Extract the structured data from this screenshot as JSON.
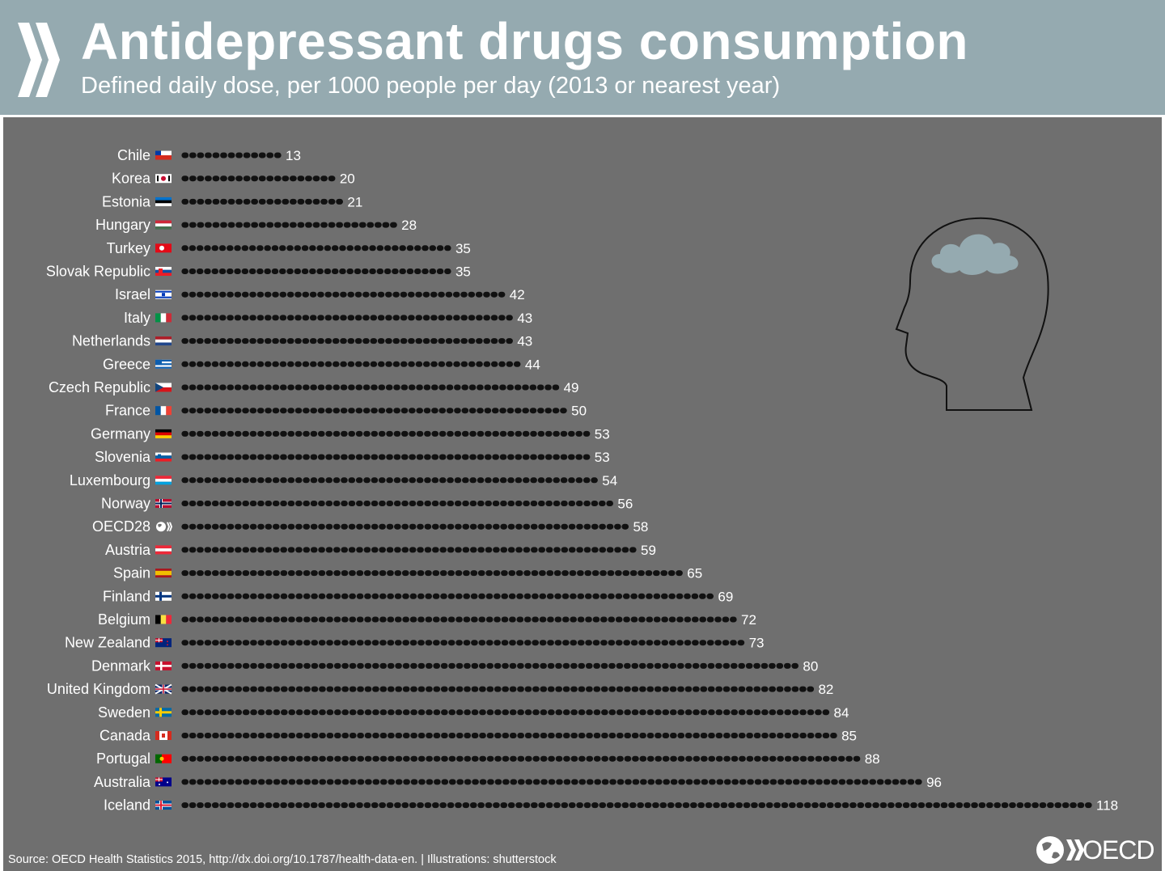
{
  "header": {
    "title": "Antidepressant drugs consumption",
    "subtitle": "Defined daily dose, per 1000 people per day (2013 or nearest year)"
  },
  "footer": {
    "source": "Source: OECD Health Statistics 2015, http://dx.doi.org/10.1787/health-data-en. | Illustrations: shutterstock",
    "logo_text": "OECD"
  },
  "colors": {
    "header_bg": "#95aab0",
    "panel_bg": "#6f6f6f",
    "pill": "#111111",
    "text": "#ffffff",
    "cloud": "#95aab0"
  },
  "chart_data": {
    "type": "bar",
    "title": "Antidepressant drugs consumption",
    "subtitle": "Defined daily dose, per 1000 people per day (2013 or nearest year)",
    "xlabel": "",
    "ylabel": "",
    "grid": false,
    "legend": "none",
    "bar_style": "rows of capsule pills",
    "categories": [
      "Chile",
      "Korea",
      "Estonia",
      "Hungary",
      "Turkey",
      "Slovak Republic",
      "Israel",
      "Italy",
      "Netherlands",
      "Greece",
      "Czech Republic",
      "France",
      "Germany",
      "Slovenia",
      "Luxembourg",
      "Norway",
      "OECD28",
      "Austria",
      "Spain",
      "Finland",
      "Belgium",
      "New Zealand",
      "Denmark",
      "United Kingdom",
      "Sweden",
      "Canada",
      "Portugal",
      "Australia",
      "Iceland"
    ],
    "flags": [
      "flag-chile",
      "flag-korea",
      "flag-estonia",
      "flag-hungary",
      "flag-turkey",
      "flag-slovak-republic",
      "flag-israel",
      "flag-italy",
      "flag-netherlands",
      "flag-greece",
      "flag-czech-republic",
      "flag-france",
      "flag-germany",
      "flag-slovenia",
      "flag-luxembourg",
      "flag-norway",
      "oecd-globe-icon",
      "flag-austria",
      "flag-spain",
      "flag-finland",
      "flag-belgium",
      "flag-new-zealand",
      "flag-denmark",
      "flag-united-kingdom",
      "flag-sweden",
      "flag-canada",
      "flag-portugal",
      "flag-australia",
      "flag-iceland"
    ],
    "values": [
      13,
      20,
      21,
      28,
      35,
      35,
      42,
      43,
      43,
      44,
      49,
      50,
      53,
      53,
      54,
      56,
      58,
      59,
      65,
      69,
      72,
      73,
      80,
      82,
      84,
      85,
      88,
      96,
      118
    ],
    "xlim": [
      0,
      118
    ]
  }
}
